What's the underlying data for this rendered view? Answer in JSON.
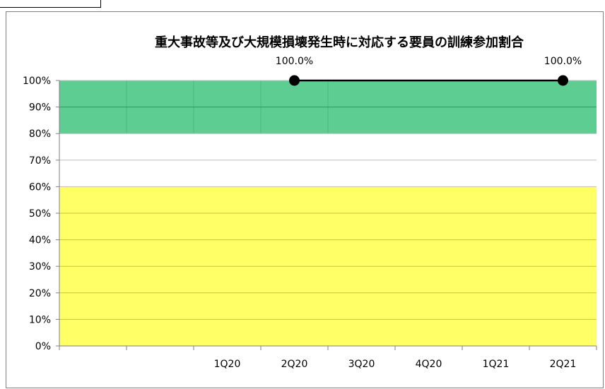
{
  "chart_data": {
    "type": "line",
    "title": "重大事故等及び大規模損壊発生時に対応する要員の訓練参加割合",
    "categories": [
      "",
      "",
      "1Q20",
      "2Q20",
      "3Q20",
      "4Q20",
      "1Q21",
      "2Q21"
    ],
    "series": [
      {
        "points": [
          {
            "x": "2Q20",
            "y": 100.0,
            "label": "100.0%"
          },
          {
            "x": "2Q21",
            "y": 100.0,
            "label": "100.0%"
          }
        ]
      }
    ],
    "ylim": [
      0,
      100
    ],
    "yticks": [
      "0%",
      "10%",
      "20%",
      "30%",
      "40%",
      "50%",
      "60%",
      "70%",
      "80%",
      "90%",
      "100%"
    ],
    "bands": [
      {
        "from": 80,
        "to": 100,
        "color": "#5ecd91"
      },
      {
        "from": 0,
        "to": 60,
        "color": "#ffff66"
      }
    ],
    "line_color": "#000000",
    "marker_color": "#000000",
    "grid": true
  }
}
